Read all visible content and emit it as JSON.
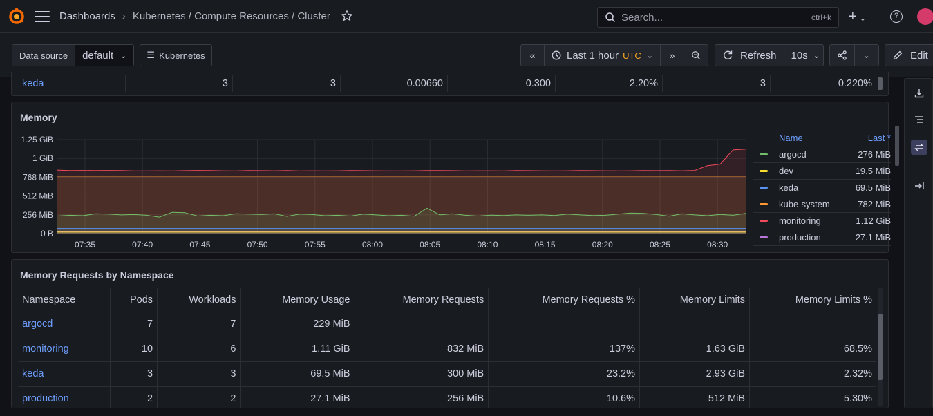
{
  "topbar": {
    "breadcrumbs": [
      "Dashboards",
      "Kubernetes / Compute Resources / Cluster"
    ],
    "breadcrumb_sep": "›",
    "search_placeholder": "Search...",
    "search_shortcut": "ctrl+k"
  },
  "toolbar": {
    "datasource_label": "Data source",
    "datasource_value": "default",
    "kubernetes_button": "Kubernetes",
    "time_range": "Last 1 hour",
    "timezone": "UTC",
    "refresh_label": "Refresh",
    "refresh_interval": "10s",
    "edit_label": "Edit"
  },
  "top_row": {
    "cells": [
      "keda",
      "3",
      "3",
      "0.00660",
      "0.300",
      "2.20%",
      "3",
      "0.220%"
    ]
  },
  "memory_panel": {
    "title": "Memory",
    "legend_header": {
      "name": "Name",
      "last": "Last *"
    },
    "legend": [
      {
        "name": "argocd",
        "last": "276 MiB",
        "color": "#73bf69"
      },
      {
        "name": "dev",
        "last": "19.5 MiB",
        "color": "#fade2a"
      },
      {
        "name": "keda",
        "last": "69.5 MiB",
        "color": "#5794f2"
      },
      {
        "name": "kube-system",
        "last": "782 MiB",
        "color": "#ff9830"
      },
      {
        "name": "monitoring",
        "last": "1.12 GiB",
        "color": "#f2495c"
      },
      {
        "name": "production",
        "last": "27.1 MiB",
        "color": "#b877d9"
      }
    ]
  },
  "chart_data": {
    "type": "area",
    "title": "Memory",
    "y_ticks": [
      "0 B",
      "256 MiB",
      "512 MiB",
      "768 MiB",
      "1 GiB",
      "1.25 GiB"
    ],
    "ylim_mib": [
      0,
      1280
    ],
    "x_ticks": [
      "07:35",
      "07:40",
      "07:45",
      "07:50",
      "07:55",
      "08:00",
      "08:05",
      "08:10",
      "08:15",
      "08:20",
      "08:25",
      "08:30"
    ],
    "grid": true,
    "legend_position": "right",
    "series": [
      {
        "name": "monitoring",
        "color": "#f2495c",
        "values_mib": [
          865,
          858,
          860,
          858,
          860,
          858,
          855,
          855,
          856,
          855,
          857,
          860,
          858,
          856,
          855,
          858,
          857,
          856,
          858,
          855,
          856,
          855,
          856,
          858,
          857,
          856,
          855,
          855,
          856,
          858,
          858,
          857,
          855,
          856,
          856,
          855,
          858,
          857,
          856,
          855,
          856,
          858,
          857,
          856,
          855,
          856,
          858,
          857,
          858,
          856,
          860,
          925,
          945,
          1140,
          1150
        ]
      },
      {
        "name": "kube-system",
        "color": "#ff9830",
        "values_mib": [
          782,
          782,
          782,
          782,
          782,
          782,
          782,
          782,
          782,
          782,
          782,
          782,
          782,
          782,
          782,
          782,
          782,
          782,
          782,
          782,
          782,
          782,
          782,
          782,
          782,
          782,
          782,
          782,
          782,
          782,
          782,
          782,
          782,
          782,
          782,
          782,
          782,
          782,
          782,
          782,
          782,
          782,
          782,
          782,
          782,
          782,
          782,
          782,
          782,
          782,
          782,
          782,
          782,
          782,
          782
        ]
      },
      {
        "name": "argocd",
        "color": "#73bf69",
        "values_mib": [
          240,
          250,
          245,
          270,
          265,
          255,
          260,
          250,
          225,
          290,
          285,
          240,
          250,
          245,
          270,
          265,
          260,
          270,
          235,
          265,
          260,
          245,
          250,
          240,
          265,
          255,
          245,
          250,
          238,
          345,
          255,
          270,
          250,
          240,
          252,
          248,
          255,
          250,
          255,
          248,
          265,
          255,
          248,
          250,
          265,
          280,
          275,
          260,
          238,
          270,
          255,
          245,
          262,
          250,
          276
        ]
      },
      {
        "name": "keda",
        "color": "#5794f2",
        "values_mib": [
          69.5,
          69.5,
          69.5,
          69.5,
          69.5,
          69.5,
          69.5,
          69.5,
          69.5,
          69.5,
          69.5,
          69.5,
          69.5,
          69.5,
          69.5,
          69.5,
          69.5,
          69.5,
          69.5,
          69.5,
          69.5,
          69.5,
          69.5,
          69.5,
          69.5,
          69.5,
          69.5,
          69.5,
          69.5,
          69.5,
          69.5,
          69.5,
          69.5,
          69.5,
          69.5,
          69.5,
          69.5,
          69.5,
          69.5,
          69.5,
          69.5,
          69.5,
          69.5,
          69.5,
          69.5,
          69.5,
          69.5,
          69.5,
          69.5,
          69.5,
          69.5,
          69.5,
          69.5,
          69.5,
          69.5
        ]
      },
      {
        "name": "production",
        "color": "#b877d9",
        "values_mib": [
          27.1,
          27.1,
          27.1,
          27.1,
          27.1,
          27.1,
          27.1,
          27.1,
          27.1,
          27.1,
          27.1,
          27.1,
          27.1,
          27.1,
          27.1,
          27.1,
          27.1,
          27.1,
          27.1,
          27.1,
          27.1,
          27.1,
          27.1,
          27.1,
          27.1,
          27.1,
          27.1,
          27.1,
          27.1,
          27.1,
          27.1,
          27.1,
          27.1,
          27.1,
          27.1,
          27.1,
          27.1,
          27.1,
          27.1,
          27.1,
          27.1,
          27.1,
          27.1,
          27.1,
          27.1,
          27.1,
          27.1,
          27.1,
          27.1,
          27.1,
          27.1,
          27.1,
          27.1,
          27.1,
          27.1
        ]
      },
      {
        "name": "dev",
        "color": "#fade2a",
        "values_mib": [
          19.5,
          19.5,
          19.5,
          19.5,
          19.5,
          19.5,
          19.5,
          19.5,
          19.5,
          19.5,
          19.5,
          19.5,
          19.5,
          19.5,
          19.5,
          19.5,
          19.5,
          19.5,
          19.5,
          19.5,
          19.5,
          19.5,
          19.5,
          19.5,
          19.5,
          19.5,
          19.5,
          19.5,
          19.5,
          19.5,
          19.5,
          19.5,
          19.5,
          19.5,
          19.5,
          19.5,
          19.5,
          19.5,
          19.5,
          19.5,
          19.5,
          19.5,
          19.5,
          19.5,
          19.5,
          19.5,
          19.5,
          19.5,
          19.5,
          19.5,
          19.5,
          19.5,
          19.5,
          19.5,
          19.5
        ]
      }
    ]
  },
  "requests_panel": {
    "title": "Memory Requests by Namespace",
    "columns": [
      "Namespace",
      "Pods",
      "Workloads",
      "Memory Usage",
      "Memory Requests",
      "Memory Requests %",
      "Memory Limits",
      "Memory Limits %"
    ],
    "rows": [
      [
        "argocd",
        "7",
        "7",
        "229 MiB",
        "",
        "",
        "",
        ""
      ],
      [
        "monitoring",
        "10",
        "6",
        "1.11 GiB",
        "832 MiB",
        "137%",
        "1.63 GiB",
        "68.5%"
      ],
      [
        "keda",
        "3",
        "3",
        "69.5 MiB",
        "300 MiB",
        "23.2%",
        "2.93 GiB",
        "2.32%"
      ],
      [
        "production",
        "2",
        "2",
        "27.1 MiB",
        "256 MiB",
        "10.6%",
        "512 MiB",
        "5.30%"
      ]
    ]
  }
}
